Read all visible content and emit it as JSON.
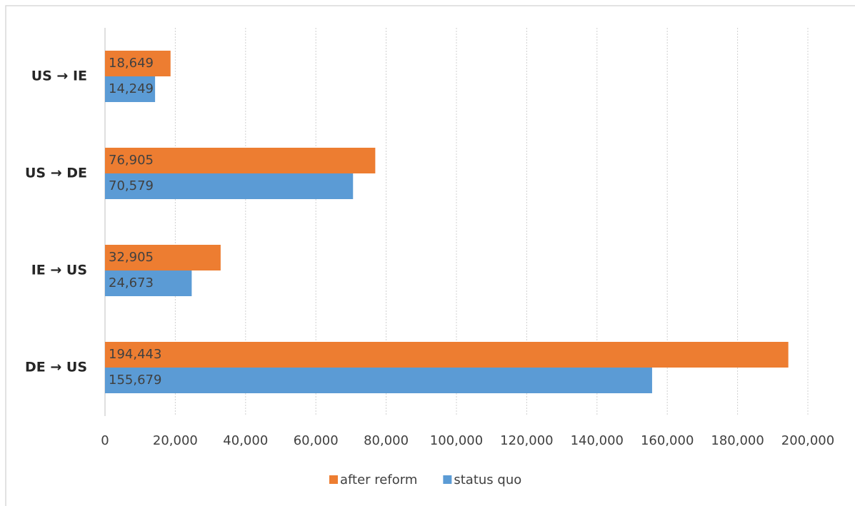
{
  "chart_data": {
    "type": "bar",
    "orientation": "horizontal",
    "categories": [
      "US → IE",
      "US → DE",
      "IE → US",
      "DE → US"
    ],
    "series": [
      {
        "name": "after reform",
        "color": "#ed7d31",
        "values": [
          18649,
          76905,
          32905,
          194443
        ],
        "value_labels": [
          "18,649",
          "76,905",
          "32,905",
          "194,443"
        ]
      },
      {
        "name": "status quo",
        "color": "#5b9bd5",
        "values": [
          14249,
          70579,
          24673,
          155679
        ],
        "value_labels": [
          "14,249",
          "70,579",
          "24,673",
          "155,679"
        ]
      }
    ],
    "xlim": [
      0,
      200000
    ],
    "xticks": [
      0,
      {
        "value": 20000,
        "label": "20,000"
      },
      {
        "value": 40000,
        "label": "40,000"
      },
      {
        "value": 60000,
        "label": "60,000"
      },
      {
        "value": 80000,
        "label": "80,000"
      },
      {
        "value": 100000,
        "label": "100,000"
      },
      {
        "value": 120000,
        "label": "120,000"
      },
      {
        "value": 140000,
        "label": "140,000"
      },
      {
        "value": 160000,
        "label": "160,000"
      },
      {
        "value": 180000,
        "label": "180,000"
      },
      {
        "value": 200000,
        "label": "200,000"
      }
    ],
    "grid": true,
    "legend": "bottom"
  }
}
